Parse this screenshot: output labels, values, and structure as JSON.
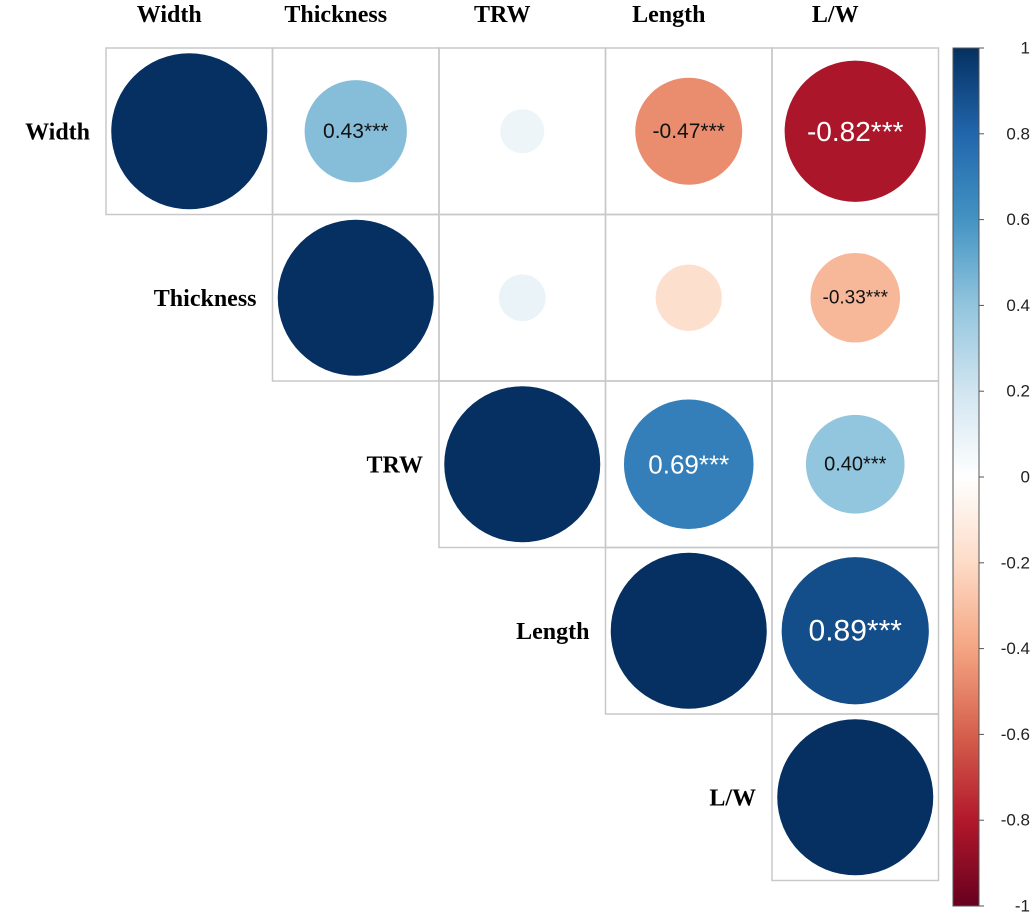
{
  "chart_data": {
    "type": "heatmap",
    "variables": [
      "Width",
      "Thickness",
      "TRW",
      "Length",
      "L/W"
    ],
    "layout": "upper-triangle",
    "glyph": "circle",
    "cells": [
      {
        "row": "Width",
        "col": "Width",
        "value": 1.0,
        "label": ""
      },
      {
        "row": "Width",
        "col": "Thickness",
        "value": 0.43,
        "label": "0.43***"
      },
      {
        "row": "Width",
        "col": "TRW",
        "value": 0.08,
        "label": ""
      },
      {
        "row": "Width",
        "col": "Length",
        "value": -0.47,
        "label": "-0.47***"
      },
      {
        "row": "Width",
        "col": "L/W",
        "value": -0.82,
        "label": "-0.82***"
      },
      {
        "row": "Thickness",
        "col": "Thickness",
        "value": 1.0,
        "label": ""
      },
      {
        "row": "Thickness",
        "col": "TRW",
        "value": 0.09,
        "label": ""
      },
      {
        "row": "Thickness",
        "col": "Length",
        "value": -0.18,
        "label": ""
      },
      {
        "row": "Thickness",
        "col": "L/W",
        "value": -0.33,
        "label": "-0.33***"
      },
      {
        "row": "TRW",
        "col": "TRW",
        "value": 1.0,
        "label": ""
      },
      {
        "row": "TRW",
        "col": "Length",
        "value": 0.69,
        "label": "0.69***"
      },
      {
        "row": "TRW",
        "col": "L/W",
        "value": 0.4,
        "label": "0.40***"
      },
      {
        "row": "Length",
        "col": "Length",
        "value": 1.0,
        "label": ""
      },
      {
        "row": "Length",
        "col": "L/W",
        "value": 0.89,
        "label": "0.89***"
      },
      {
        "row": "L/W",
        "col": "L/W",
        "value": 1.0,
        "label": ""
      }
    ],
    "colorbar": {
      "range": [
        -1,
        1
      ],
      "ticks": [
        "1",
        "0.8",
        "0.6",
        "0.4",
        "0.2",
        "0",
        "-0.2",
        "-0.4",
        "-0.6",
        "-0.8",
        "-1"
      ],
      "colors": {
        "-1": "#67001F",
        "-0.8": "#B2182B",
        "-0.6": "#D6604D",
        "-0.4": "#F4A582",
        "-0.2": "#FDDBC7",
        "0": "#FFFFFF",
        "0.2": "#D1E5F0",
        "0.4": "#92C5DE",
        "0.6": "#4393C3",
        "0.8": "#2166AC",
        "1": "#053061"
      }
    },
    "grid": true,
    "legend": "right"
  }
}
